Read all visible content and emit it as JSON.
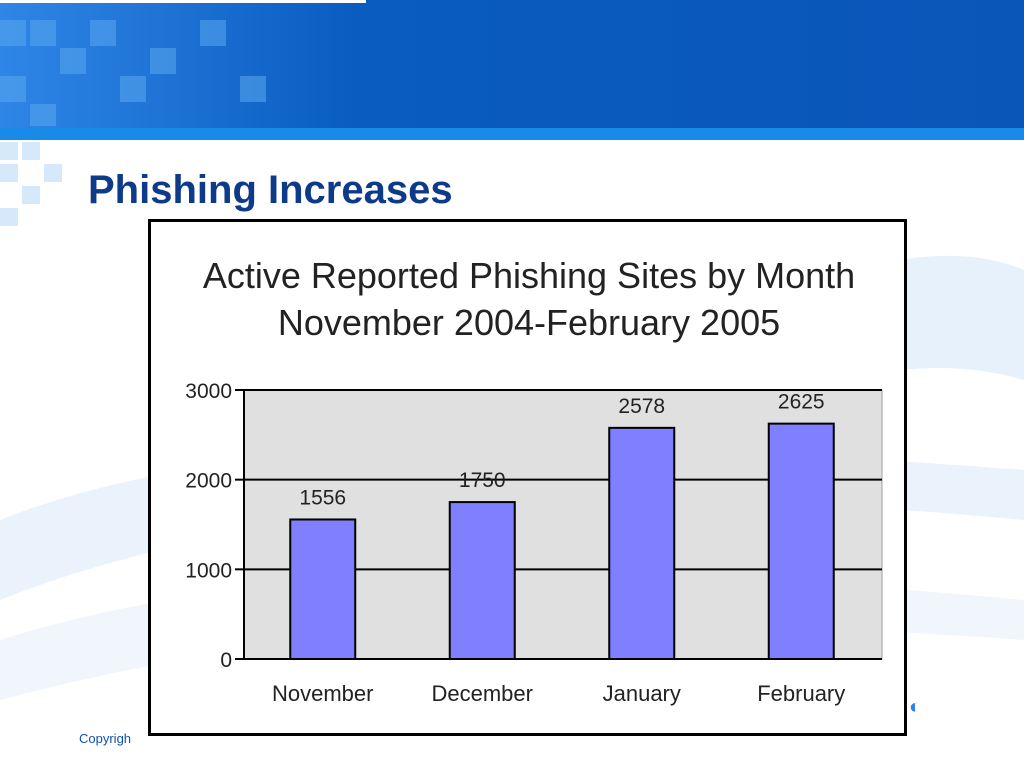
{
  "slide": {
    "title": "Phishing Increases",
    "footer": "Copyrigh"
  },
  "colors": {
    "title": "#0e3a8a",
    "bar": "#7f7fff",
    "plot_bg": "#e0e0e0",
    "header_blue": "#0a5cc0"
  },
  "chart_data": {
    "type": "bar",
    "title": "Active Reported Phishing Sites by Month",
    "subtitle": "November 2004-February 2005",
    "categories": [
      "November",
      "December",
      "January",
      "February"
    ],
    "values": [
      1556,
      1750,
      2578,
      2625
    ],
    "data_labels": [
      "1556",
      "1750",
      "2578",
      "2625"
    ],
    "xlabel": "",
    "ylabel": "",
    "ylim": [
      0,
      3000
    ],
    "yticks": [
      0,
      1000,
      2000,
      3000
    ],
    "ytick_labels": [
      "0",
      "1000",
      "2000",
      "3000"
    ],
    "grid": true,
    "legend": "none"
  }
}
